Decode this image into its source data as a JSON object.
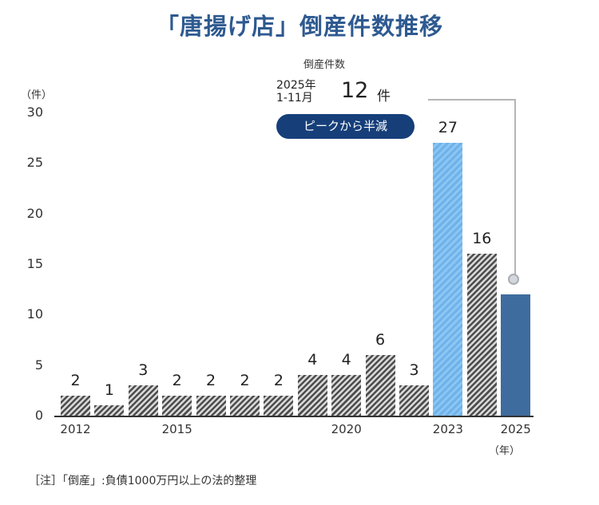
{
  "title": "「唐揚げ店」倒産件数推移",
  "callout": {
    "heading": "倒産件数",
    "period_line1": "2025年",
    "period_line2": "1-11月",
    "value": "12",
    "unit": "件",
    "badge": "ピークから半減",
    "badge_color": "#163f7a"
  },
  "note": "［注］「倒産」:負債1000万円以上の法的整理",
  "colors": {
    "title": "#2e5a90",
    "hatch_dark": "#4d4d4d",
    "hatch_light": "#d9d9d9",
    "peak": "#6fb2ea",
    "current": "#3f6c9e"
  },
  "chart_data": {
    "type": "bar",
    "title": "「唐揚げ店」倒産件数推移",
    "xlabel": "（年）",
    "ylabel": "（件）",
    "ylim": [
      0,
      30
    ],
    "yticks": [
      "0",
      "5",
      "10",
      "15",
      "20",
      "25",
      "30"
    ],
    "grid": false,
    "legend": null,
    "categories": [
      "2012",
      "2013",
      "2014",
      "2015",
      "2016",
      "2017",
      "2018",
      "2019",
      "2020",
      "2021",
      "2022",
      "2023",
      "2024",
      "2025"
    ],
    "values": [
      2,
      1,
      3,
      2,
      2,
      2,
      2,
      4,
      4,
      6,
      3,
      27,
      16,
      12
    ],
    "value_labels": [
      "2",
      "1",
      "3",
      "2",
      "2",
      "2",
      "2",
      "4",
      "4",
      "6",
      "3",
      "27",
      "16",
      ""
    ],
    "xtick_labels": [
      {
        "year": "2012",
        "label": "2012"
      },
      {
        "year": "2015",
        "label": "2015"
      },
      {
        "year": "2020",
        "label": "2020"
      },
      {
        "year": "2023",
        "label": "2023"
      },
      {
        "year": "2025",
        "label": "2025"
      }
    ],
    "bar_styles": [
      "hatch",
      "hatch",
      "hatch",
      "hatch",
      "hatch",
      "hatch",
      "hatch",
      "hatch",
      "hatch",
      "hatch",
      "hatch",
      "peak",
      "hatch",
      "current"
    ],
    "annotations": [
      {
        "target": "2025",
        "text": "2025年 1-11月 12 件"
      },
      {
        "target": "2025",
        "text": "ピークから半減"
      }
    ]
  }
}
